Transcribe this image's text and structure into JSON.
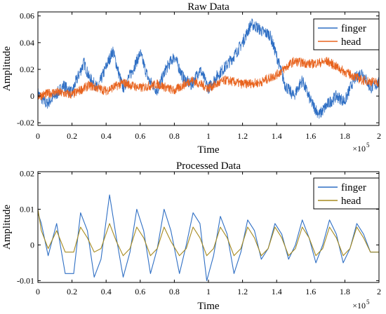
{
  "chart_data": [
    {
      "type": "line",
      "title": "Raw Data",
      "xlabel": "Time",
      "ylabel": "Amplitude",
      "x_multiplier_label": "×10",
      "x_multiplier_exponent": "5",
      "xlim": [
        0,
        200000
      ],
      "ylim": [
        -0.022,
        0.063
      ],
      "x_ticks": [
        0,
        20000,
        40000,
        60000,
        80000,
        100000,
        120000,
        140000,
        160000,
        180000,
        200000
      ],
      "x_tick_labels": [
        "0",
        "0.2",
        "0.4",
        "0.6",
        "0.8",
        "1",
        "1.2",
        "1.4",
        "1.6",
        "1.8",
        "2"
      ],
      "y_ticks": [
        -0.02,
        0,
        0.02,
        0.04,
        0.06
      ],
      "y_tick_labels": [
        "-0.02",
        "0",
        "0.02",
        "0.04",
        "0.06"
      ],
      "grid": false,
      "legend_position": "top-right",
      "series": [
        {
          "name": "finger",
          "color": "#2f6fc4",
          "noise": 0.0045,
          "x": [
            0,
            5000,
            10000,
            15000,
            20000,
            22000,
            27000,
            30000,
            35000,
            40000,
            44000,
            48000,
            50000,
            55000,
            60000,
            65000,
            70000,
            75000,
            80000,
            85000,
            90000,
            95000,
            100000,
            105000,
            110000,
            115000,
            120000,
            125000,
            128000,
            132000,
            136000,
            140000,
            145000,
            150000,
            155000,
            160000,
            165000,
            170000,
            175000,
            180000,
            185000,
            190000,
            195000,
            200000
          ],
          "y": [
            0.002,
            -0.006,
            0.0,
            0.008,
            0.002,
            0.01,
            0.025,
            0.014,
            0.006,
            0.022,
            0.034,
            0.014,
            0.006,
            0.018,
            0.032,
            0.012,
            0.004,
            0.02,
            0.03,
            0.014,
            0.008,
            0.02,
            0.006,
            0.015,
            0.022,
            0.03,
            0.04,
            0.054,
            0.052,
            0.048,
            0.046,
            0.03,
            0.008,
            0.0,
            0.012,
            -0.004,
            -0.014,
            -0.006,
            0.0,
            -0.004,
            0.012,
            0.018,
            0.006,
            0.01
          ]
        },
        {
          "name": "head",
          "color": "#e8641f",
          "noise": 0.0035,
          "x": [
            0,
            10000,
            20000,
            30000,
            40000,
            50000,
            60000,
            70000,
            80000,
            90000,
            100000,
            110000,
            120000,
            130000,
            140000,
            150000,
            160000,
            170000,
            180000,
            190000,
            200000
          ],
          "y": [
            0.0,
            0.003,
            0.001,
            0.008,
            0.004,
            0.01,
            0.006,
            0.009,
            0.004,
            0.012,
            0.006,
            0.012,
            0.009,
            0.01,
            0.016,
            0.026,
            0.024,
            0.026,
            0.018,
            0.012,
            0.01
          ]
        }
      ]
    },
    {
      "type": "line",
      "title": "Processed Data",
      "xlabel": "Time",
      "ylabel": "Amplitude",
      "x_multiplier_label": "×10",
      "x_multiplier_exponent": "5",
      "xlim": [
        0,
        200000
      ],
      "ylim": [
        -0.0105,
        0.0205
      ],
      "x_ticks": [
        0,
        20000,
        40000,
        60000,
        80000,
        100000,
        120000,
        140000,
        160000,
        180000,
        200000
      ],
      "x_tick_labels": [
        "0",
        "0.2",
        "0.4",
        "0.6",
        "0.8",
        "1",
        "1.2",
        "1.4",
        "1.6",
        "1.8",
        "2"
      ],
      "y_ticks": [
        -0.01,
        0,
        0.01,
        0.02
      ],
      "y_tick_labels": [
        "-0.01",
        "0",
        "0.01",
        "0.02"
      ],
      "grid": false,
      "legend_position": "top-right",
      "series": [
        {
          "name": "finger",
          "color": "#2f6fc4",
          "x": [
            0,
            2000,
            6000,
            11000,
            16000,
            21000,
            25000,
            29000,
            33000,
            37000,
            42000,
            46000,
            50000,
            54000,
            58000,
            62000,
            66000,
            70000,
            74000,
            78000,
            83000,
            87000,
            91000,
            95000,
            99000,
            103000,
            107000,
            111000,
            115000,
            119000,
            123000,
            127000,
            131000,
            135000,
            139000,
            143000,
            147000,
            151000,
            155000,
            159000,
            163000,
            167000,
            171000,
            175000,
            179000,
            183000,
            187000,
            191000,
            195000,
            200000
          ],
          "y": [
            0.009,
            0.006,
            -0.003,
            0.006,
            -0.008,
            -0.008,
            0.009,
            0.004,
            -0.009,
            -0.004,
            0.014,
            0.002,
            -0.009,
            -0.002,
            0.01,
            0.004,
            -0.008,
            -0.001,
            0.01,
            0.004,
            -0.008,
            0.0,
            0.009,
            0.006,
            -0.01,
            -0.003,
            0.008,
            0.003,
            -0.008,
            -0.002,
            0.007,
            0.004,
            -0.004,
            -0.001,
            0.006,
            0.003,
            -0.004,
            0.0,
            0.007,
            0.002,
            -0.005,
            0.0,
            0.007,
            0.003,
            -0.005,
            -0.001,
            0.006,
            0.003,
            -0.002,
            -0.002
          ]
        },
        {
          "name": "head",
          "color": "#a68a1f",
          "x": [
            0,
            2000,
            6000,
            11000,
            16000,
            21000,
            25000,
            29000,
            33000,
            37000,
            42000,
            46000,
            50000,
            54000,
            58000,
            62000,
            66000,
            70000,
            74000,
            78000,
            83000,
            87000,
            91000,
            95000,
            99000,
            103000,
            107000,
            111000,
            115000,
            119000,
            123000,
            127000,
            131000,
            135000,
            139000,
            143000,
            147000,
            151000,
            155000,
            159000,
            163000,
            167000,
            171000,
            175000,
            179000,
            183000,
            187000,
            191000,
            195000,
            200000
          ],
          "y": [
            0.01,
            0.004,
            -0.001,
            0.004,
            -0.002,
            -0.002,
            0.005,
            0.002,
            -0.002,
            -0.001,
            0.006,
            0.001,
            -0.003,
            -0.001,
            0.005,
            0.002,
            -0.003,
            -0.001,
            0.005,
            0.001,
            -0.003,
            -0.001,
            0.005,
            0.002,
            -0.003,
            -0.001,
            0.005,
            0.002,
            -0.003,
            -0.001,
            0.005,
            0.002,
            -0.003,
            -0.001,
            0.005,
            0.002,
            -0.003,
            -0.001,
            0.005,
            0.002,
            -0.003,
            -0.001,
            0.005,
            0.002,
            -0.003,
            -0.001,
            0.005,
            0.002,
            -0.002,
            -0.002
          ]
        }
      ]
    }
  ]
}
